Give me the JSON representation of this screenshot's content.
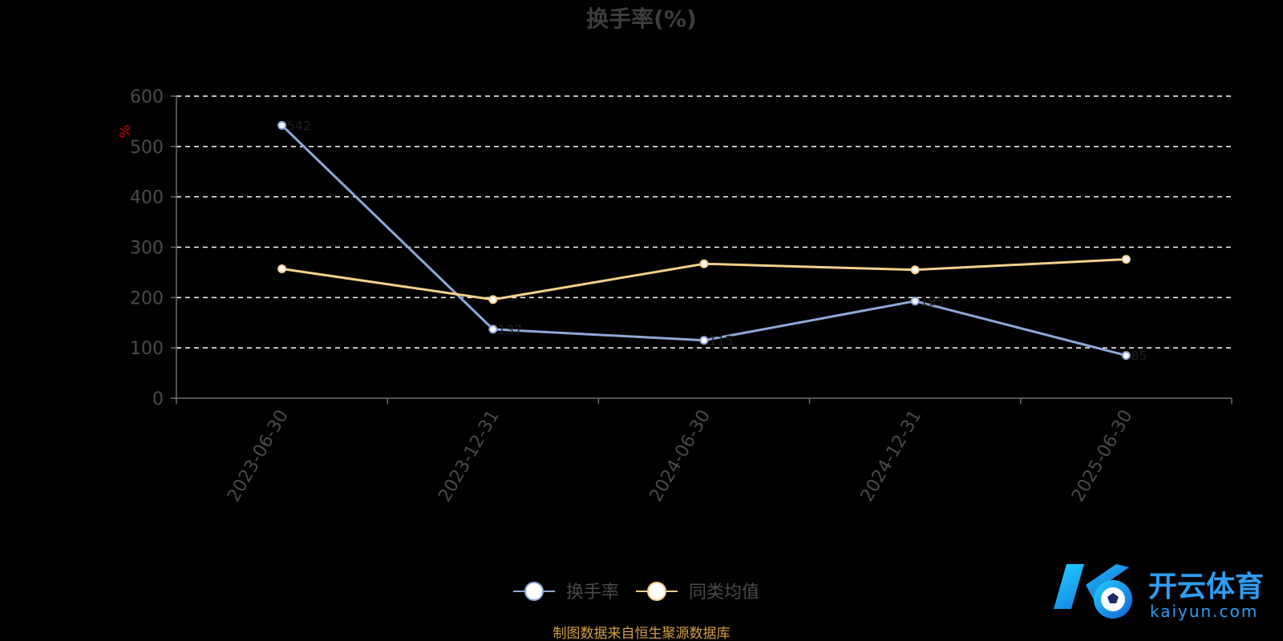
{
  "chart_data": {
    "type": "line",
    "title": "换手率(%)",
    "ylabel": "%",
    "ylim": [
      0,
      600
    ],
    "yticks": [
      0,
      100,
      200,
      300,
      400,
      500,
      600
    ],
    "categories": [
      "2023-06-30",
      "2023-12-31",
      "2024-06-30",
      "2024-12-31",
      "2025-06-30"
    ],
    "series": [
      {
        "name": "换手率",
        "color": "#8ea8d8",
        "values": [
          542,
          137,
          115,
          193,
          85
        ]
      },
      {
        "name": "同类均值",
        "color": "#f5d08c",
        "values": [
          257,
          196,
          267,
          255,
          276
        ]
      }
    ],
    "grid": true,
    "legend_position": "bottom-center",
    "source_note": "制图数据来自恒生聚源数据库",
    "watermark": {
      "brand": "开云体育",
      "domain": "kaiyun.com"
    }
  }
}
